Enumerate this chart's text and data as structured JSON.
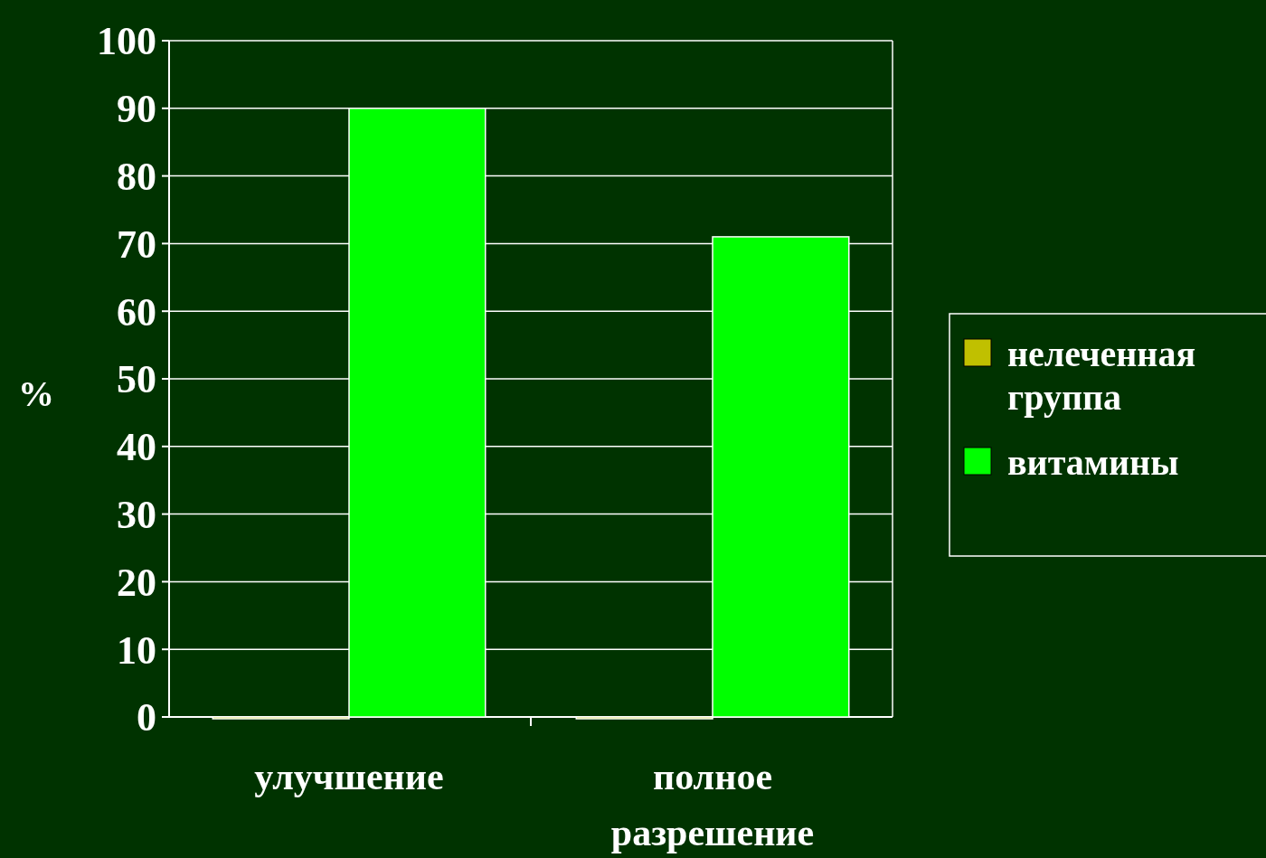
{
  "chart_data": {
    "type": "bar",
    "categories": [
      "улучшение",
      "полное разрешение"
    ],
    "ylabel": "%",
    "series": [
      {
        "name": "нелеченная группа",
        "color": "#c0c000",
        "values": [
          0,
          0
        ]
      },
      {
        "name": "витамины",
        "color": "#00ff00",
        "values": [
          90,
          71
        ]
      }
    ],
    "ylim": [
      0,
      100
    ],
    "yticks": [
      0,
      10,
      20,
      30,
      40,
      50,
      60,
      70,
      80,
      90,
      100
    ],
    "grid": "y",
    "legend": "right"
  }
}
